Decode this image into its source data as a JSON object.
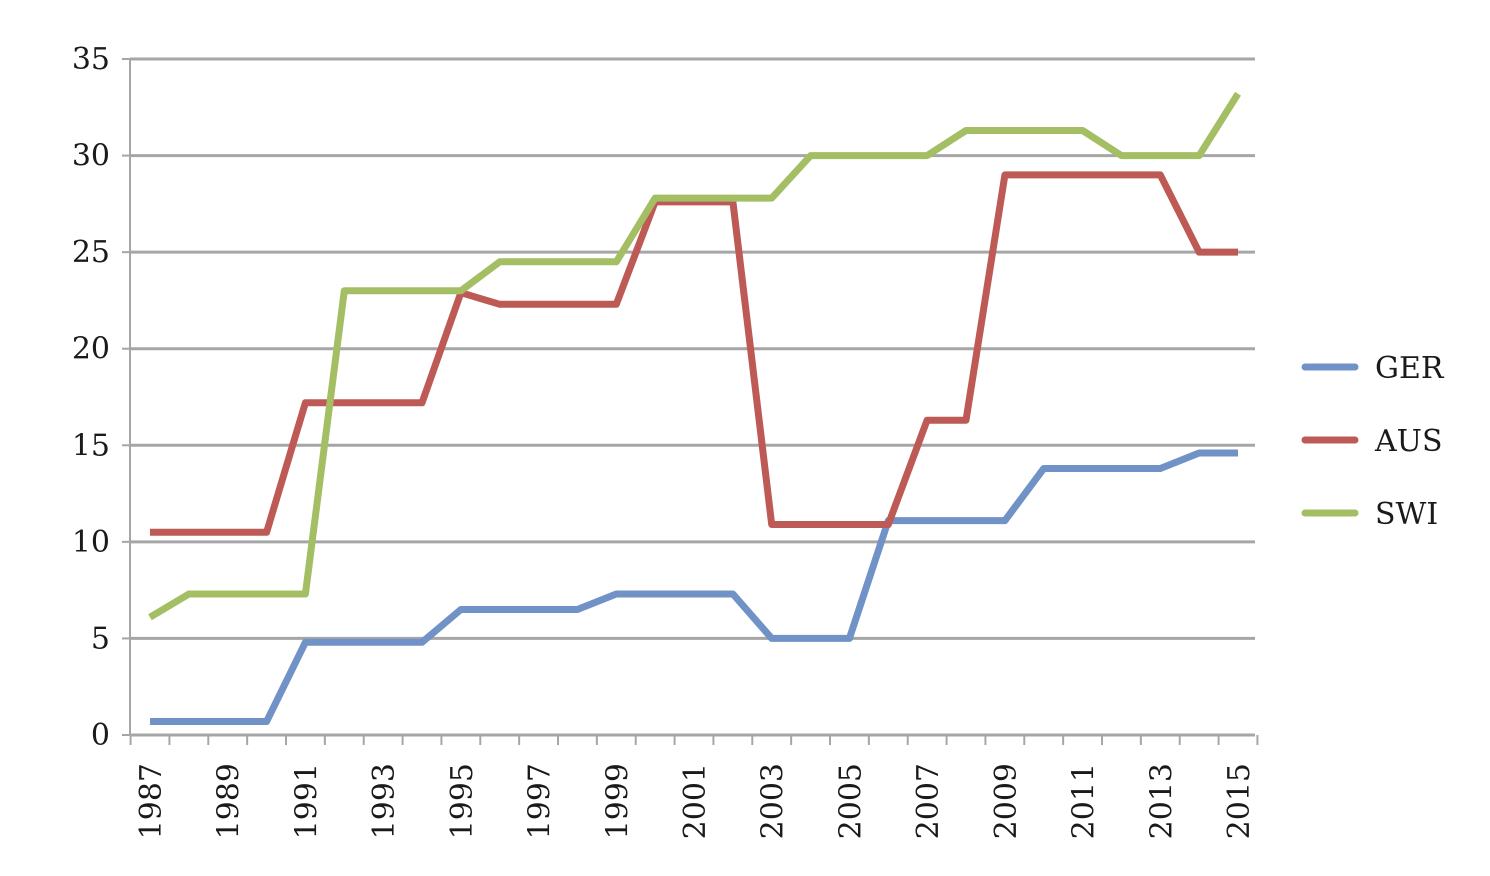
{
  "chart_data": {
    "type": "line",
    "title": "",
    "xlabel": "",
    "ylabel": "",
    "ylim": [
      0,
      35
    ],
    "yticks": [
      0,
      5,
      10,
      15,
      20,
      25,
      30,
      35
    ],
    "x": [
      1987,
      1988,
      1989,
      1990,
      1991,
      1992,
      1993,
      1994,
      1995,
      1996,
      1997,
      1998,
      1999,
      2000,
      2001,
      2002,
      2003,
      2004,
      2005,
      2006,
      2007,
      2008,
      2009,
      2010,
      2011,
      2012,
      2013,
      2014,
      2015
    ],
    "xtick_labels": [
      "1987",
      "1989",
      "1991",
      "1993",
      "1995",
      "1997",
      "1999",
      "2001",
      "2003",
      "2005",
      "2007",
      "2009",
      "2011",
      "2013",
      "2015"
    ],
    "grid": "horizontal",
    "legend_position": "right",
    "series": [
      {
        "name": "GER",
        "color": "#7092c6",
        "values": [
          0.7,
          0.7,
          0.7,
          0.7,
          4.8,
          4.8,
          4.8,
          4.8,
          6.5,
          6.5,
          6.5,
          6.5,
          7.3,
          7.3,
          7.3,
          7.3,
          5.0,
          5.0,
          5.0,
          11.1,
          11.1,
          11.1,
          11.1,
          13.8,
          13.8,
          13.8,
          13.8,
          14.6,
          14.6
        ]
      },
      {
        "name": "AUS",
        "color": "#be5a55",
        "values": [
          10.5,
          10.5,
          10.5,
          10.5,
          17.2,
          17.2,
          17.2,
          17.2,
          22.9,
          22.3,
          22.3,
          22.3,
          22.3,
          27.6,
          27.6,
          27.6,
          10.9,
          10.9,
          10.9,
          10.9,
          16.3,
          16.3,
          29.0,
          29.0,
          29.0,
          29.0,
          29.0,
          25.0,
          25.0
        ]
      },
      {
        "name": "SWI",
        "color": "#a4bf63",
        "values": [
          6.1,
          7.3,
          7.3,
          7.3,
          7.3,
          23.0,
          23.0,
          23.0,
          23.0,
          24.5,
          24.5,
          24.5,
          24.5,
          27.8,
          27.8,
          27.8,
          27.8,
          30.0,
          30.0,
          30.0,
          30.0,
          31.3,
          31.3,
          31.3,
          31.3,
          30.0,
          30.0,
          30.0,
          33.2
        ]
      }
    ]
  }
}
